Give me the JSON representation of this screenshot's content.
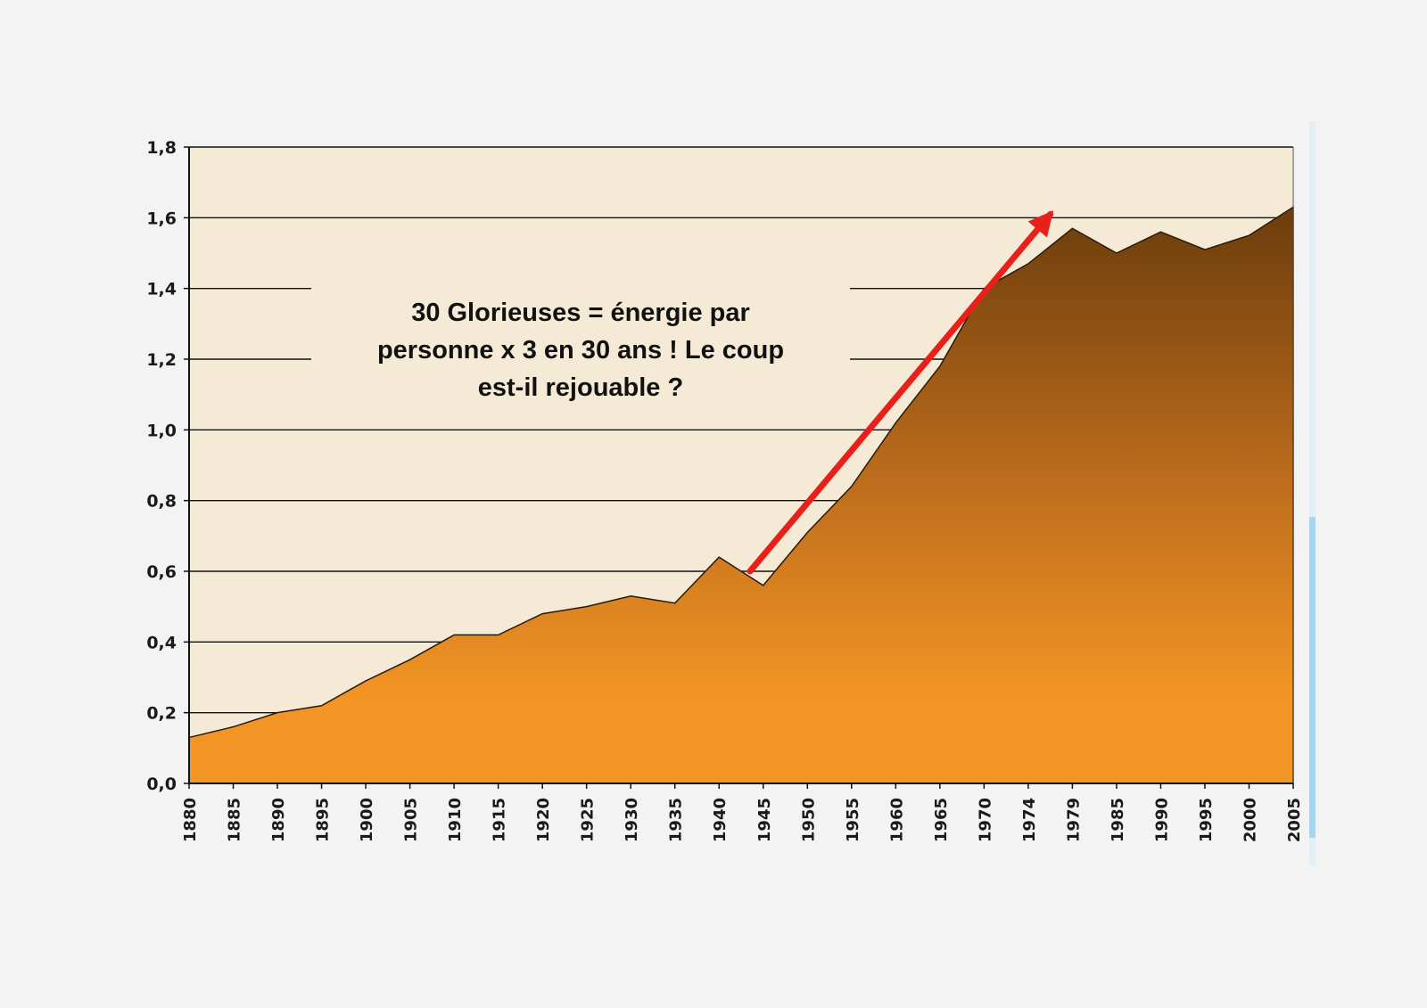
{
  "chart_data": {
    "type": "area",
    "x": [
      "1880",
      "1885",
      "1890",
      "1895",
      "1900",
      "1905",
      "1910",
      "1915",
      "1920",
      "1925",
      "1930",
      "1935",
      "1940",
      "1945",
      "1950",
      "1955",
      "1960",
      "1965",
      "1970",
      "1974",
      "1979",
      "1985",
      "1990",
      "1995",
      "2000",
      "2005"
    ],
    "values": [
      0.13,
      0.16,
      0.2,
      0.22,
      0.29,
      0.35,
      0.42,
      0.42,
      0.48,
      0.5,
      0.53,
      0.51,
      0.64,
      0.56,
      0.71,
      0.84,
      1.02,
      1.18,
      1.4,
      1.47,
      1.57,
      1.5,
      1.56,
      1.51,
      1.55,
      1.63
    ],
    "ylim": [
      0,
      1.8
    ],
    "y_ticks": [
      "0,0",
      "0,2",
      "0,4",
      "0,6",
      "0,8",
      "1,0",
      "1,2",
      "1,4",
      "1,6",
      "1,8"
    ],
    "grid": true,
    "colors": {
      "fill_top": "#6b3d0c",
      "fill_bottom": "#f39524",
      "plot_bg": "#f5ead6",
      "arrow": "#e8201a"
    },
    "annotation": {
      "lines": [
        "30 Glorieuses = énergie par",
        "personne x 3 en 30 ans ! Le coup",
        "est-il rejouable ?"
      ]
    },
    "arrow": {
      "from": [
        1943.5,
        0.6
      ],
      "to": [
        1976.5,
        1.61
      ]
    }
  }
}
